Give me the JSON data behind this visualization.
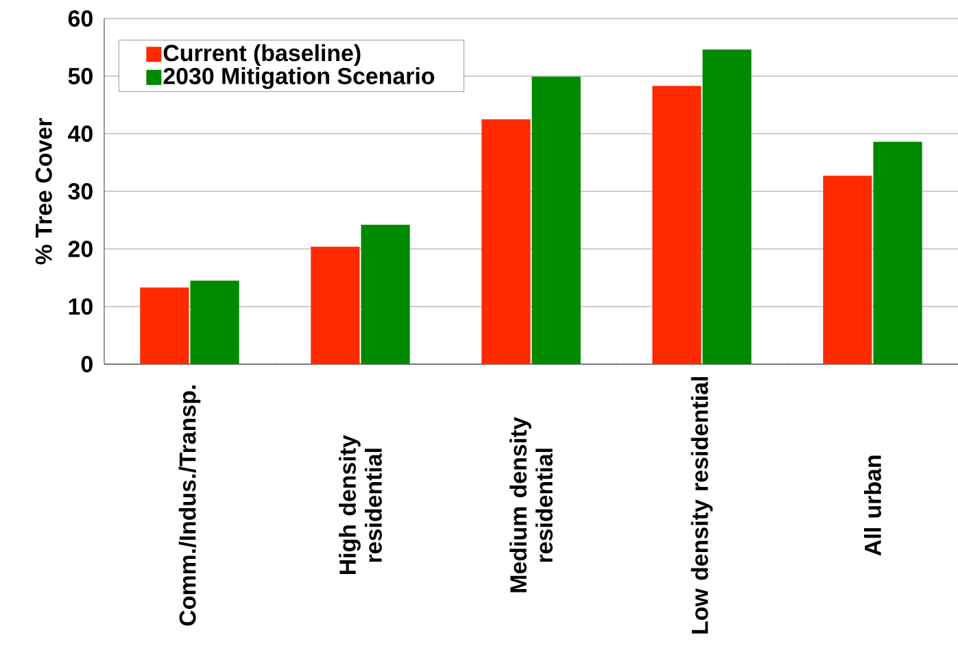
{
  "chart_data": {
    "type": "bar",
    "ylabel": "% Tree Cover",
    "categories": [
      "Comm./Indus./Transp.",
      "High density residential",
      "Medium density residential",
      "Low density residential",
      "All urban"
    ],
    "series": [
      {
        "name": "Current (baseline)",
        "color": "#ff2a00",
        "values": [
          13.3,
          20.4,
          42.5,
          48.3,
          32.7
        ]
      },
      {
        "name": "2030 Mitigation Scenario",
        "color": "#008a00",
        "values": [
          14.5,
          24.2,
          49.9,
          54.6,
          38.6
        ]
      }
    ],
    "ylim": [
      0,
      60
    ],
    "yticks": [
      0,
      10,
      20,
      30,
      40,
      50,
      60
    ],
    "grid": "y",
    "legend": "top left"
  }
}
